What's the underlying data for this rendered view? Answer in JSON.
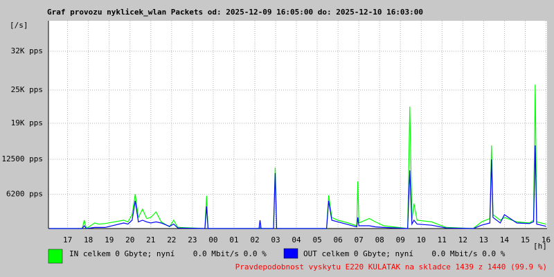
{
  "chart_data": {
    "type": "line",
    "title": "Graf provozu nyklicek_wlan Packets od: 2025-12-09 16:05:00 do: 2025-12-10 16:03:00",
    "ylabel": "[/s]",
    "xlabel": "[h]",
    "xlim": [
      16.08,
      40.05
    ],
    "ylim": [
      0,
      37500
    ],
    "xticks": [
      17,
      18,
      19,
      20,
      21,
      22,
      23,
      {
        "value": 24,
        "label": "00"
      },
      {
        "value": 25,
        "label": "01"
      },
      {
        "value": 26,
        "label": "02"
      },
      {
        "value": 27,
        "label": "03"
      },
      {
        "value": 28,
        "label": "04"
      },
      {
        "value": 29,
        "label": "05"
      },
      {
        "value": 30,
        "label": "06"
      },
      {
        "value": 31,
        "label": "07"
      },
      {
        "value": 32,
        "label": "08"
      },
      {
        "value": 33,
        "label": "09"
      },
      {
        "value": 34,
        "label": "10"
      },
      {
        "value": 35,
        "label": "11"
      },
      {
        "value": 36,
        "label": "12"
      },
      {
        "value": 37,
        "label": "13"
      },
      {
        "value": 38,
        "label": "14"
      },
      {
        "value": 39,
        "label": "15"
      },
      {
        "value": 40,
        "label": "16"
      }
    ],
    "yticks": [
      {
        "value": 6200,
        "label": "6200 pps"
      },
      {
        "value": 12500,
        "label": "12500 pps"
      },
      {
        "value": 19000,
        "label": "19K pps"
      },
      {
        "value": 25000,
        "label": "25K pps"
      },
      {
        "value": 32000,
        "label": "32K pps"
      }
    ],
    "grid": true,
    "x": [
      16.1,
      17.7,
      17.8,
      17.9,
      18.3,
      18.5,
      18.8,
      19.7,
      19.9,
      20.1,
      20.25,
      20.4,
      20.6,
      20.8,
      21.0,
      21.25,
      21.5,
      21.9,
      22.1,
      22.3,
      23.6,
      23.68,
      23.75,
      26.2,
      26.25,
      26.3,
      26.9,
      26.98,
      27.05,
      29.45,
      29.55,
      29.7,
      30.0,
      30.5,
      30.9,
      30.95,
      31.0,
      31.5,
      31.8,
      32.2,
      33.35,
      33.45,
      33.55,
      33.65,
      33.8,
      34.5,
      35.2,
      36.5,
      36.9,
      37.3,
      37.38,
      37.45,
      37.8,
      38.0,
      38.6,
      39.2,
      39.4,
      39.48,
      39.55,
      40.0
    ],
    "series": [
      {
        "name": "IN celkem 0 Gbyte; nyní    0.0 Mbit/s 0.0 %",
        "color": "#00ff00",
        "values": [
          0,
          0,
          1500,
          0,
          1000,
          800,
          900,
          1500,
          1200,
          2500,
          6200,
          2000,
          3500,
          1800,
          2000,
          3000,
          1200,
          300,
          1500,
          200,
          0,
          5900,
          0,
          0,
          300,
          0,
          0,
          11000,
          0,
          0,
          6000,
          2000,
          1500,
          1000,
          500,
          8500,
          1000,
          1800,
          1200,
          500,
          0,
          22000,
          1500,
          4500,
          1500,
          1200,
          200,
          0,
          1200,
          1800,
          15000,
          2500,
          1500,
          2000,
          1200,
          1000,
          1500,
          26000,
          1200,
          800
        ]
      },
      {
        "name": "OUT celkem 0 Gbyte; nyní    0.0 Mbit/s 0.0 %",
        "color": "#0000ff",
        "values": [
          0,
          0,
          500,
          0,
          200,
          200,
          200,
          1000,
          800,
          1500,
          5000,
          1200,
          1500,
          1200,
          1000,
          1200,
          1000,
          400,
          800,
          100,
          0,
          4000,
          0,
          0,
          1500,
          0,
          0,
          10000,
          0,
          0,
          5000,
          1500,
          1200,
          700,
          300,
          2000,
          500,
          500,
          300,
          200,
          0,
          10500,
          800,
          1500,
          800,
          600,
          100,
          0,
          600,
          1000,
          12500,
          2000,
          1000,
          2500,
          1000,
          900,
          1200,
          15000,
          800,
          400
        ]
      }
    ],
    "footnote": "Pravdepodobnost vyskytu E220 KULATAK na skladce 1439 z 1440 (99.9 %)",
    "footnote_color": "#ff0000"
  }
}
